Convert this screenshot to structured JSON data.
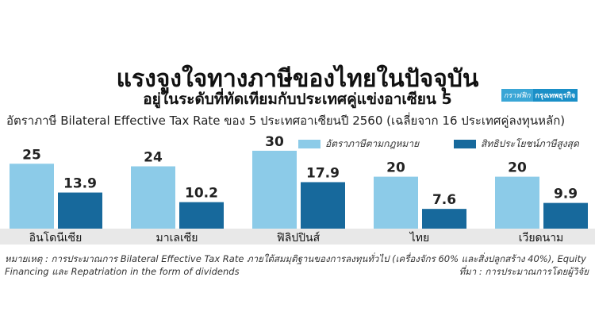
{
  "title": "แรงจูงใจทางภาษีของไทยในปัจจุบัน",
  "subtitle": "อยู่ในระดับที่ทัดเทียมกับประเทศคู่แข่งอาเซียน 5",
  "brand": {
    "part1": "กราฟฟิก",
    "part2": "กรุงเทพธุรกิจ"
  },
  "chart_data": {
    "type": "bar",
    "title": "อัตราภาษี Bilateral Effective Tax Rate ของ 5 ประเทศอาเซียนปี 2560 (เฉลี่ยจาก 16 ประเทศคู่ลงทุนหลัก)",
    "categories": [
      "อินโดนีเซีย",
      "มาเลเซีย",
      "ฟิลิปปินส์",
      "ไทย",
      "เวียดนาม"
    ],
    "series": [
      {
        "name": "อัตราภาษีตามกฎหมาย",
        "values": [
          25,
          24,
          30,
          20,
          20
        ],
        "color": "#8ccbe8"
      },
      {
        "name": "สิทธิประโยชน์ภาษีสูงสุด",
        "values": [
          13.9,
          10.2,
          17.9,
          7.6,
          9.9
        ],
        "color": "#17699c"
      }
    ],
    "value_labels": [
      [
        "25",
        "24",
        "30",
        "20",
        "20"
      ],
      [
        "13.9",
        "10.2",
        "17.9",
        "7.6",
        "9.9"
      ]
    ],
    "legend": "top-right",
    "grid": false
  },
  "note": "หมายเหตุ : การประมาณการ Bilateral Effective Tax Rate ภายใต้สมมุติฐานของการลงทุนทั่วไป (เครื่องจักร 60% และสิ่งปลูกสร้าง 40%), Equity Financing และ Repatriation in the form of dividends",
  "source": "ที่มา : การประมาณการโดยผู้วิจัย"
}
